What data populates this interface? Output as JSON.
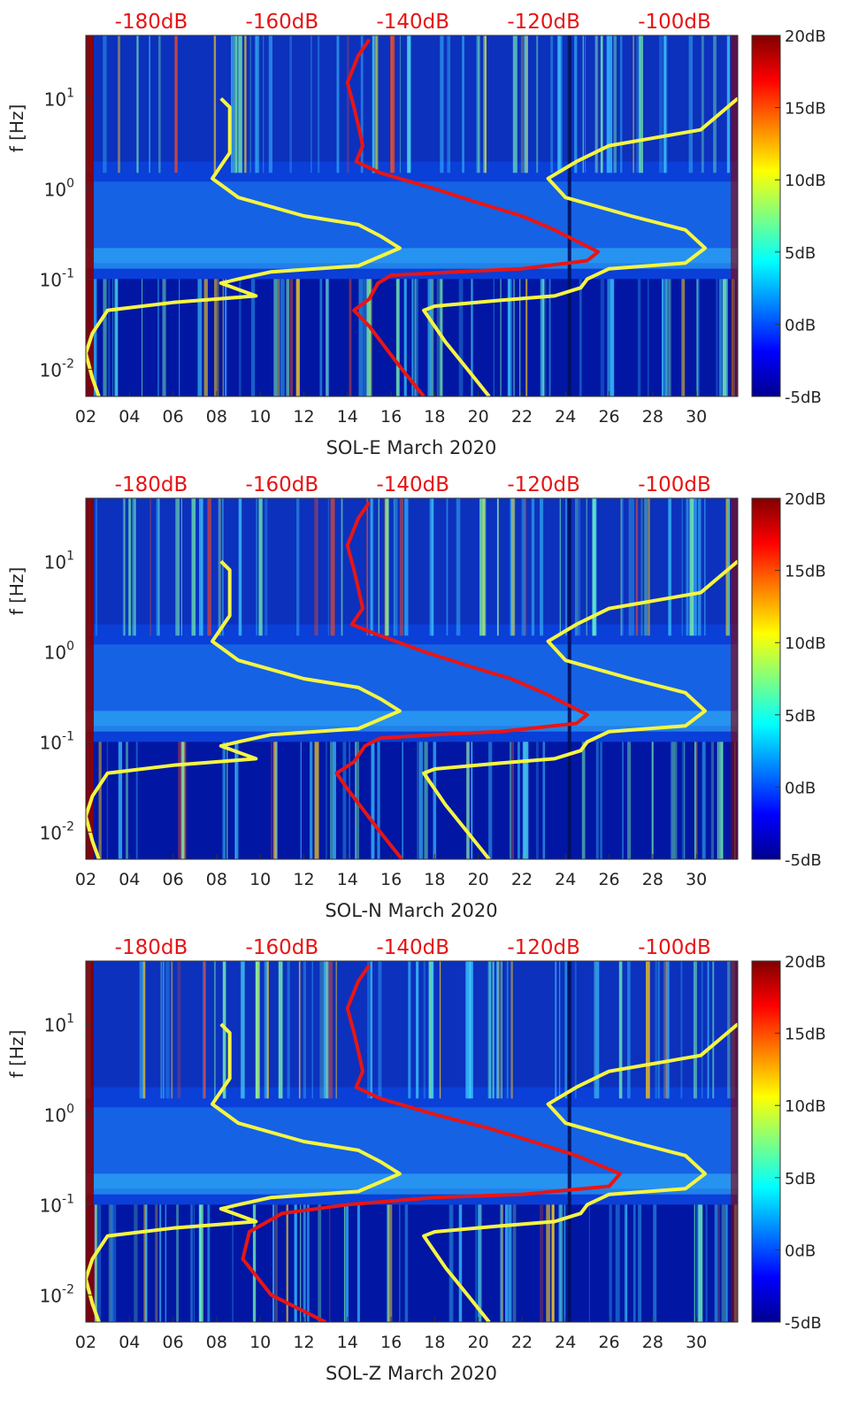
{
  "chart_data": [
    {
      "type": "heatmap",
      "xlabel": "SOL-E March 2020",
      "ylabel": "f [Hz]",
      "x_ticks": [
        "02",
        "04",
        "06",
        "08",
        "10",
        "12",
        "14",
        "16",
        "18",
        "20",
        "22",
        "24",
        "26",
        "28",
        "30"
      ],
      "x_tick_values": [
        2,
        4,
        6,
        8,
        10,
        12,
        14,
        16,
        18,
        20,
        22,
        24,
        26,
        28,
        30
      ],
      "xlim": [
        2,
        31.9
      ],
      "y_scale": "log",
      "ylim": [
        0.005,
        50
      ],
      "y_ticks": [
        {
          "value": 0.01,
          "base": "10",
          "exp": "-2"
        },
        {
          "value": 0.1,
          "base": "10",
          "exp": "-1"
        },
        {
          "value": 1,
          "base": "10",
          "exp": "0"
        },
        {
          "value": 10,
          "base": "10",
          "exp": "1"
        }
      ],
      "top_labels": [
        "-180dB",
        "-160dB",
        "-140dB",
        "-120dB",
        "-100dB"
      ],
      "top_label_x": [
        5,
        11,
        17,
        23,
        29
      ],
      "colorbar": {
        "ticks": [
          "20dB",
          "15dB",
          "10dB",
          "5dB",
          "0dB",
          "-5dB"
        ],
        "range": [
          -5,
          20
        ],
        "colormap": "jet"
      },
      "series": [
        {
          "name": "",
          "color": "#f5f542",
          "points": [
            [
              8.2,
              10
            ],
            [
              8.6,
              8
            ],
            [
              8.6,
              2.5
            ],
            [
              7.8,
              1.3
            ],
            [
              9,
              0.8
            ],
            [
              12,
              0.5
            ],
            [
              14.5,
              0.4
            ],
            [
              15.5,
              0.3
            ],
            [
              16.4,
              0.22
            ],
            [
              14.5,
              0.14
            ],
            [
              10.5,
              0.12
            ],
            [
              9,
              0.1
            ],
            [
              8.2,
              0.09
            ],
            [
              9.8,
              0.065
            ],
            [
              6,
              0.055
            ],
            [
              3,
              0.045
            ],
            [
              2.3,
              0.025
            ],
            [
              2,
              0.015
            ],
            [
              2.3,
              0.008
            ],
            [
              2.6,
              0.005
            ]
          ]
        },
        {
          "name": "",
          "color": "#f5f542",
          "points": [
            [
              31.9,
              10
            ],
            [
              30.2,
              4.5
            ],
            [
              26,
              3
            ],
            [
              24.5,
              2
            ],
            [
              23.2,
              1.3
            ],
            [
              24,
              0.8
            ],
            [
              27,
              0.5
            ],
            [
              29.5,
              0.35
            ],
            [
              30.4,
              0.22
            ],
            [
              29.5,
              0.15
            ],
            [
              26,
              0.13
            ],
            [
              25,
              0.1
            ],
            [
              24.7,
              0.08
            ],
            [
              23.5,
              0.065
            ],
            [
              21,
              0.058
            ],
            [
              18,
              0.05
            ],
            [
              17.5,
              0.045
            ],
            [
              18.5,
              0.02
            ],
            [
              19.5,
              0.01
            ],
            [
              20.5,
              0.005
            ]
          ]
        },
        {
          "name": "",
          "color": "#e81515",
          "points": [
            [
              15,
              45
            ],
            [
              14.5,
              30
            ],
            [
              14,
              15
            ],
            [
              14.3,
              8
            ],
            [
              14.5,
              5
            ],
            [
              14.7,
              3
            ],
            [
              14.4,
              2
            ],
            [
              15.5,
              1.5
            ],
            [
              18,
              1
            ],
            [
              20,
              0.7
            ],
            [
              22,
              0.5
            ],
            [
              23.5,
              0.35
            ],
            [
              25.5,
              0.2
            ],
            [
              25,
              0.16
            ],
            [
              22,
              0.13
            ],
            [
              19,
              0.12
            ],
            [
              16,
              0.11
            ],
            [
              15.4,
              0.09
            ],
            [
              15,
              0.06
            ],
            [
              14.3,
              0.045
            ],
            [
              15,
              0.03
            ],
            [
              16.5,
              0.01
            ],
            [
              17.5,
              0.005
            ]
          ]
        }
      ]
    },
    {
      "type": "heatmap",
      "xlabel": "SOL-N March 2020",
      "ylabel": "f [Hz]",
      "x_ticks": [
        "02",
        "04",
        "06",
        "08",
        "10",
        "12",
        "14",
        "16",
        "18",
        "20",
        "22",
        "24",
        "26",
        "28",
        "30"
      ],
      "x_tick_values": [
        2,
        4,
        6,
        8,
        10,
        12,
        14,
        16,
        18,
        20,
        22,
        24,
        26,
        28,
        30
      ],
      "xlim": [
        2,
        31.9
      ],
      "y_scale": "log",
      "ylim": [
        0.005,
        50
      ],
      "y_ticks": [
        {
          "value": 0.01,
          "base": "10",
          "exp": "-2"
        },
        {
          "value": 0.1,
          "base": "10",
          "exp": "-1"
        },
        {
          "value": 1,
          "base": "10",
          "exp": "0"
        },
        {
          "value": 10,
          "base": "10",
          "exp": "1"
        }
      ],
      "top_labels": [
        "-180dB",
        "-160dB",
        "-140dB",
        "-120dB",
        "-100dB"
      ],
      "top_label_x": [
        5,
        11,
        17,
        23,
        29
      ],
      "colorbar": {
        "ticks": [
          "20dB",
          "15dB",
          "10dB",
          "5dB",
          "0dB",
          "-5dB"
        ],
        "range": [
          -5,
          20
        ],
        "colormap": "jet"
      },
      "series": [
        {
          "name": "",
          "color": "#f5f542",
          "points": [
            [
              8.2,
              10
            ],
            [
              8.6,
              8
            ],
            [
              8.6,
              2.5
            ],
            [
              7.8,
              1.3
            ],
            [
              9,
              0.8
            ],
            [
              12,
              0.5
            ],
            [
              14.5,
              0.4
            ],
            [
              15.5,
              0.3
            ],
            [
              16.4,
              0.22
            ],
            [
              14.5,
              0.14
            ],
            [
              10.5,
              0.12
            ],
            [
              9,
              0.1
            ],
            [
              8.2,
              0.09
            ],
            [
              9.8,
              0.065
            ],
            [
              6,
              0.055
            ],
            [
              3,
              0.045
            ],
            [
              2.3,
              0.025
            ],
            [
              2,
              0.015
            ],
            [
              2.3,
              0.008
            ],
            [
              2.6,
              0.005
            ]
          ]
        },
        {
          "name": "",
          "color": "#f5f542",
          "points": [
            [
              31.9,
              10
            ],
            [
              30.2,
              4.5
            ],
            [
              26,
              3
            ],
            [
              24.5,
              2
            ],
            [
              23.2,
              1.3
            ],
            [
              24,
              0.8
            ],
            [
              27,
              0.5
            ],
            [
              29.5,
              0.35
            ],
            [
              30.4,
              0.22
            ],
            [
              29.5,
              0.15
            ],
            [
              26,
              0.13
            ],
            [
              25,
              0.1
            ],
            [
              24.7,
              0.08
            ],
            [
              23.5,
              0.065
            ],
            [
              21,
              0.058
            ],
            [
              18,
              0.05
            ],
            [
              17.5,
              0.045
            ],
            [
              18.5,
              0.02
            ],
            [
              19.5,
              0.01
            ],
            [
              20.5,
              0.005
            ]
          ]
        },
        {
          "name": "",
          "color": "#e81515",
          "points": [
            [
              15,
              45
            ],
            [
              14.5,
              30
            ],
            [
              14,
              15
            ],
            [
              14.3,
              8
            ],
            [
              14.5,
              5
            ],
            [
              14.7,
              3
            ],
            [
              14.2,
              2
            ],
            [
              15.5,
              1.5
            ],
            [
              17.5,
              1
            ],
            [
              19.5,
              0.7
            ],
            [
              21.5,
              0.5
            ],
            [
              23,
              0.35
            ],
            [
              25,
              0.2
            ],
            [
              24.5,
              0.16
            ],
            [
              21,
              0.13
            ],
            [
              18,
              0.12
            ],
            [
              15.5,
              0.11
            ],
            [
              14.8,
              0.09
            ],
            [
              14.3,
              0.06
            ],
            [
              13.5,
              0.045
            ],
            [
              14,
              0.03
            ],
            [
              15.5,
              0.01
            ],
            [
              16.5,
              0.005
            ]
          ]
        }
      ]
    },
    {
      "type": "heatmap",
      "xlabel": "SOL-Z March 2020",
      "ylabel": "f [Hz]",
      "x_ticks": [
        "02",
        "04",
        "06",
        "08",
        "10",
        "12",
        "14",
        "16",
        "18",
        "20",
        "22",
        "24",
        "26",
        "28",
        "30"
      ],
      "x_tick_values": [
        2,
        4,
        6,
        8,
        10,
        12,
        14,
        16,
        18,
        20,
        22,
        24,
        26,
        28,
        30
      ],
      "xlim": [
        2,
        31.9
      ],
      "y_scale": "log",
      "ylim": [
        0.005,
        50
      ],
      "y_ticks": [
        {
          "value": 0.01,
          "base": "10",
          "exp": "-2"
        },
        {
          "value": 0.1,
          "base": "10",
          "exp": "-1"
        },
        {
          "value": 1,
          "base": "10",
          "exp": "0"
        },
        {
          "value": 10,
          "base": "10",
          "exp": "1"
        }
      ],
      "top_labels": [
        "-180dB",
        "-160dB",
        "-140dB",
        "-120dB",
        "-100dB"
      ],
      "top_label_x": [
        5,
        11,
        17,
        23,
        29
      ],
      "colorbar": {
        "ticks": [
          "20dB",
          "15dB",
          "10dB",
          "5dB",
          "0dB",
          "-5dB"
        ],
        "range": [
          -5,
          20
        ],
        "colormap": "jet"
      },
      "series": [
        {
          "name": "",
          "color": "#f5f542",
          "points": [
            [
              8.2,
              10
            ],
            [
              8.6,
              8
            ],
            [
              8.6,
              2.5
            ],
            [
              7.8,
              1.3
            ],
            [
              9,
              0.8
            ],
            [
              12,
              0.5
            ],
            [
              14.5,
              0.4
            ],
            [
              15.5,
              0.3
            ],
            [
              16.4,
              0.22
            ],
            [
              14.5,
              0.14
            ],
            [
              10.5,
              0.12
            ],
            [
              9,
              0.1
            ],
            [
              8.2,
              0.09
            ],
            [
              9.8,
              0.065
            ],
            [
              6,
              0.055
            ],
            [
              3,
              0.045
            ],
            [
              2.3,
              0.025
            ],
            [
              2,
              0.015
            ],
            [
              2.3,
              0.008
            ],
            [
              2.6,
              0.005
            ]
          ]
        },
        {
          "name": "",
          "color": "#f5f542",
          "points": [
            [
              31.9,
              10
            ],
            [
              30.2,
              4.5
            ],
            [
              26,
              3
            ],
            [
              24.5,
              2
            ],
            [
              23.2,
              1.3
            ],
            [
              24,
              0.8
            ],
            [
              27,
              0.5
            ],
            [
              29.5,
              0.35
            ],
            [
              30.4,
              0.22
            ],
            [
              29.5,
              0.15
            ],
            [
              26,
              0.13
            ],
            [
              25,
              0.1
            ],
            [
              24.7,
              0.08
            ],
            [
              23.5,
              0.065
            ],
            [
              21,
              0.058
            ],
            [
              18,
              0.05
            ],
            [
              17.5,
              0.045
            ],
            [
              18.5,
              0.02
            ],
            [
              19.5,
              0.01
            ],
            [
              20.5,
              0.005
            ]
          ]
        },
        {
          "name": "",
          "color": "#e81515",
          "points": [
            [
              15,
              45
            ],
            [
              14.5,
              30
            ],
            [
              14,
              15
            ],
            [
              14.3,
              8
            ],
            [
              14.5,
              5
            ],
            [
              14.7,
              3
            ],
            [
              14.4,
              2
            ],
            [
              15.5,
              1.5
            ],
            [
              18,
              1
            ],
            [
              20.5,
              0.7
            ],
            [
              22.5,
              0.5
            ],
            [
              24.5,
              0.35
            ],
            [
              26.5,
              0.22
            ],
            [
              26,
              0.16
            ],
            [
              22,
              0.13
            ],
            [
              18,
              0.12
            ],
            [
              14,
              0.1
            ],
            [
              11,
              0.08
            ],
            [
              9.5,
              0.05
            ],
            [
              9.2,
              0.025
            ],
            [
              10.5,
              0.01
            ],
            [
              13,
              0.005
            ]
          ]
        }
      ]
    }
  ]
}
